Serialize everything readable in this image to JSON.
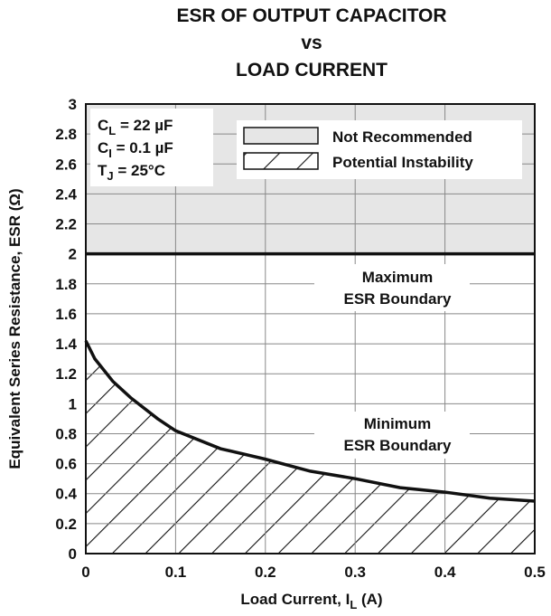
{
  "chart_data": {
    "type": "line",
    "title_lines": [
      "ESR OF OUTPUT CAPACITOR",
      "vs",
      "LOAD CURRENT"
    ],
    "x_label": {
      "main": "Load Current, I",
      "sub": "L",
      "rest": " (A)"
    },
    "y_label": "Equivalent Series Resistance, ESR (Ω)",
    "conditions": [
      {
        "main": "C",
        "sub": "L",
        "rest": " = 22 µF"
      },
      {
        "main": "C",
        "sub": "I",
        "rest": " = 0.1 µF"
      },
      {
        "main": "T",
        "sub": "J",
        "rest": " = 25°C"
      }
    ],
    "legend": [
      "Not Recommended",
      "Potential Instability"
    ],
    "annotations": {
      "maximum": [
        "Maximum",
        "ESR Boundary"
      ],
      "minimum": [
        "Minimum",
        "ESR Boundary"
      ]
    },
    "xlim": [
      0,
      0.5
    ],
    "ylim": [
      0,
      3
    ],
    "xticks": [
      0,
      0.1,
      0.2,
      0.3,
      0.4,
      0.5
    ],
    "yticks": [
      0,
      0.2,
      0.4,
      0.6,
      0.8,
      1,
      1.2,
      1.4,
      1.6,
      1.8,
      2,
      2.2,
      2.4,
      2.6,
      2.8,
      3
    ],
    "grid": true,
    "series": [
      {
        "color": "#111111",
        "x": [
          0,
          0.01,
          0.03,
          0.05,
          0.08,
          0.1,
          0.15,
          0.2,
          0.25,
          0.3,
          0.35,
          0.4,
          0.45,
          0.5
        ],
        "values": [
          1.42,
          1.3,
          1.15,
          1.04,
          0.9,
          0.82,
          0.7,
          0.63,
          0.55,
          0.5,
          0.44,
          0.41,
          0.37,
          0.35
        ]
      },
      {
        "color": "#111111",
        "x": [
          0,
          0.5
        ],
        "values": [
          2,
          2
        ]
      }
    ]
  }
}
